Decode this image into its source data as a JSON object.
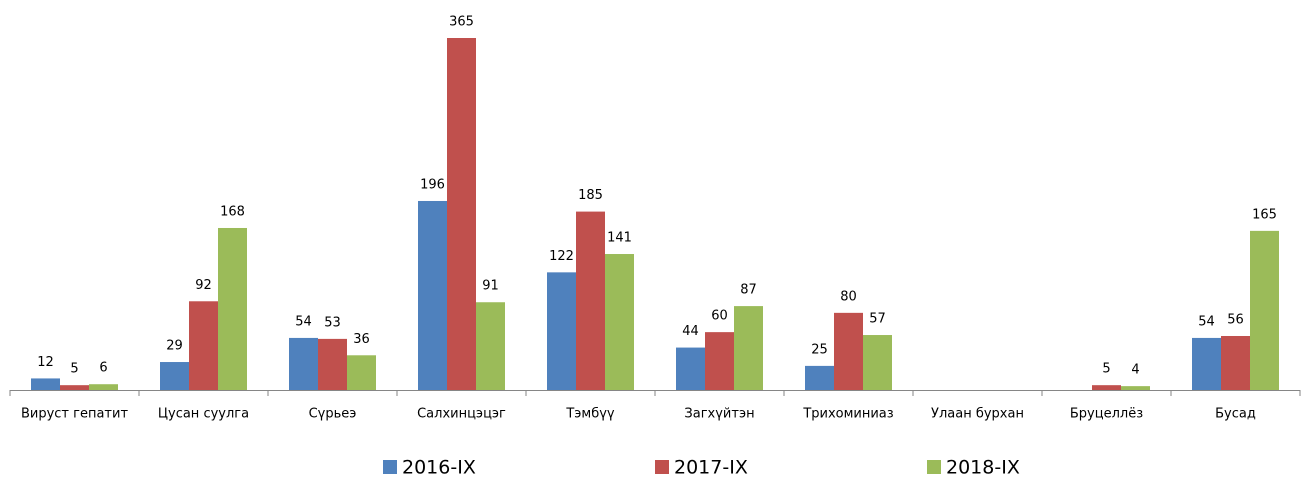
{
  "chart_data": {
    "type": "bar",
    "categories": [
      "Вируст гепатит",
      "Цусан суулга",
      "Сүрьеэ",
      "Салхинцэцэг",
      "Тэмбүү",
      "Загхүйтэн",
      "Трихоминиаз",
      "Улаан бурхан",
      "Бруцеллёз",
      "Бусад"
    ],
    "series": [
      {
        "name": "2016-IX",
        "color": "#4f81bd",
        "values": [
          12,
          29,
          54,
          196,
          122,
          44,
          25,
          null,
          null,
          54
        ]
      },
      {
        "name": "2017-IX",
        "color": "#c0504d",
        "values": [
          5,
          92,
          53,
          365,
          185,
          60,
          80,
          null,
          5,
          56
        ]
      },
      {
        "name": "2018-IX",
        "color": "#9bbb59",
        "values": [
          6,
          168,
          36,
          91,
          141,
          87,
          57,
          null,
          4,
          165
        ]
      }
    ],
    "legend": "bottom"
  }
}
